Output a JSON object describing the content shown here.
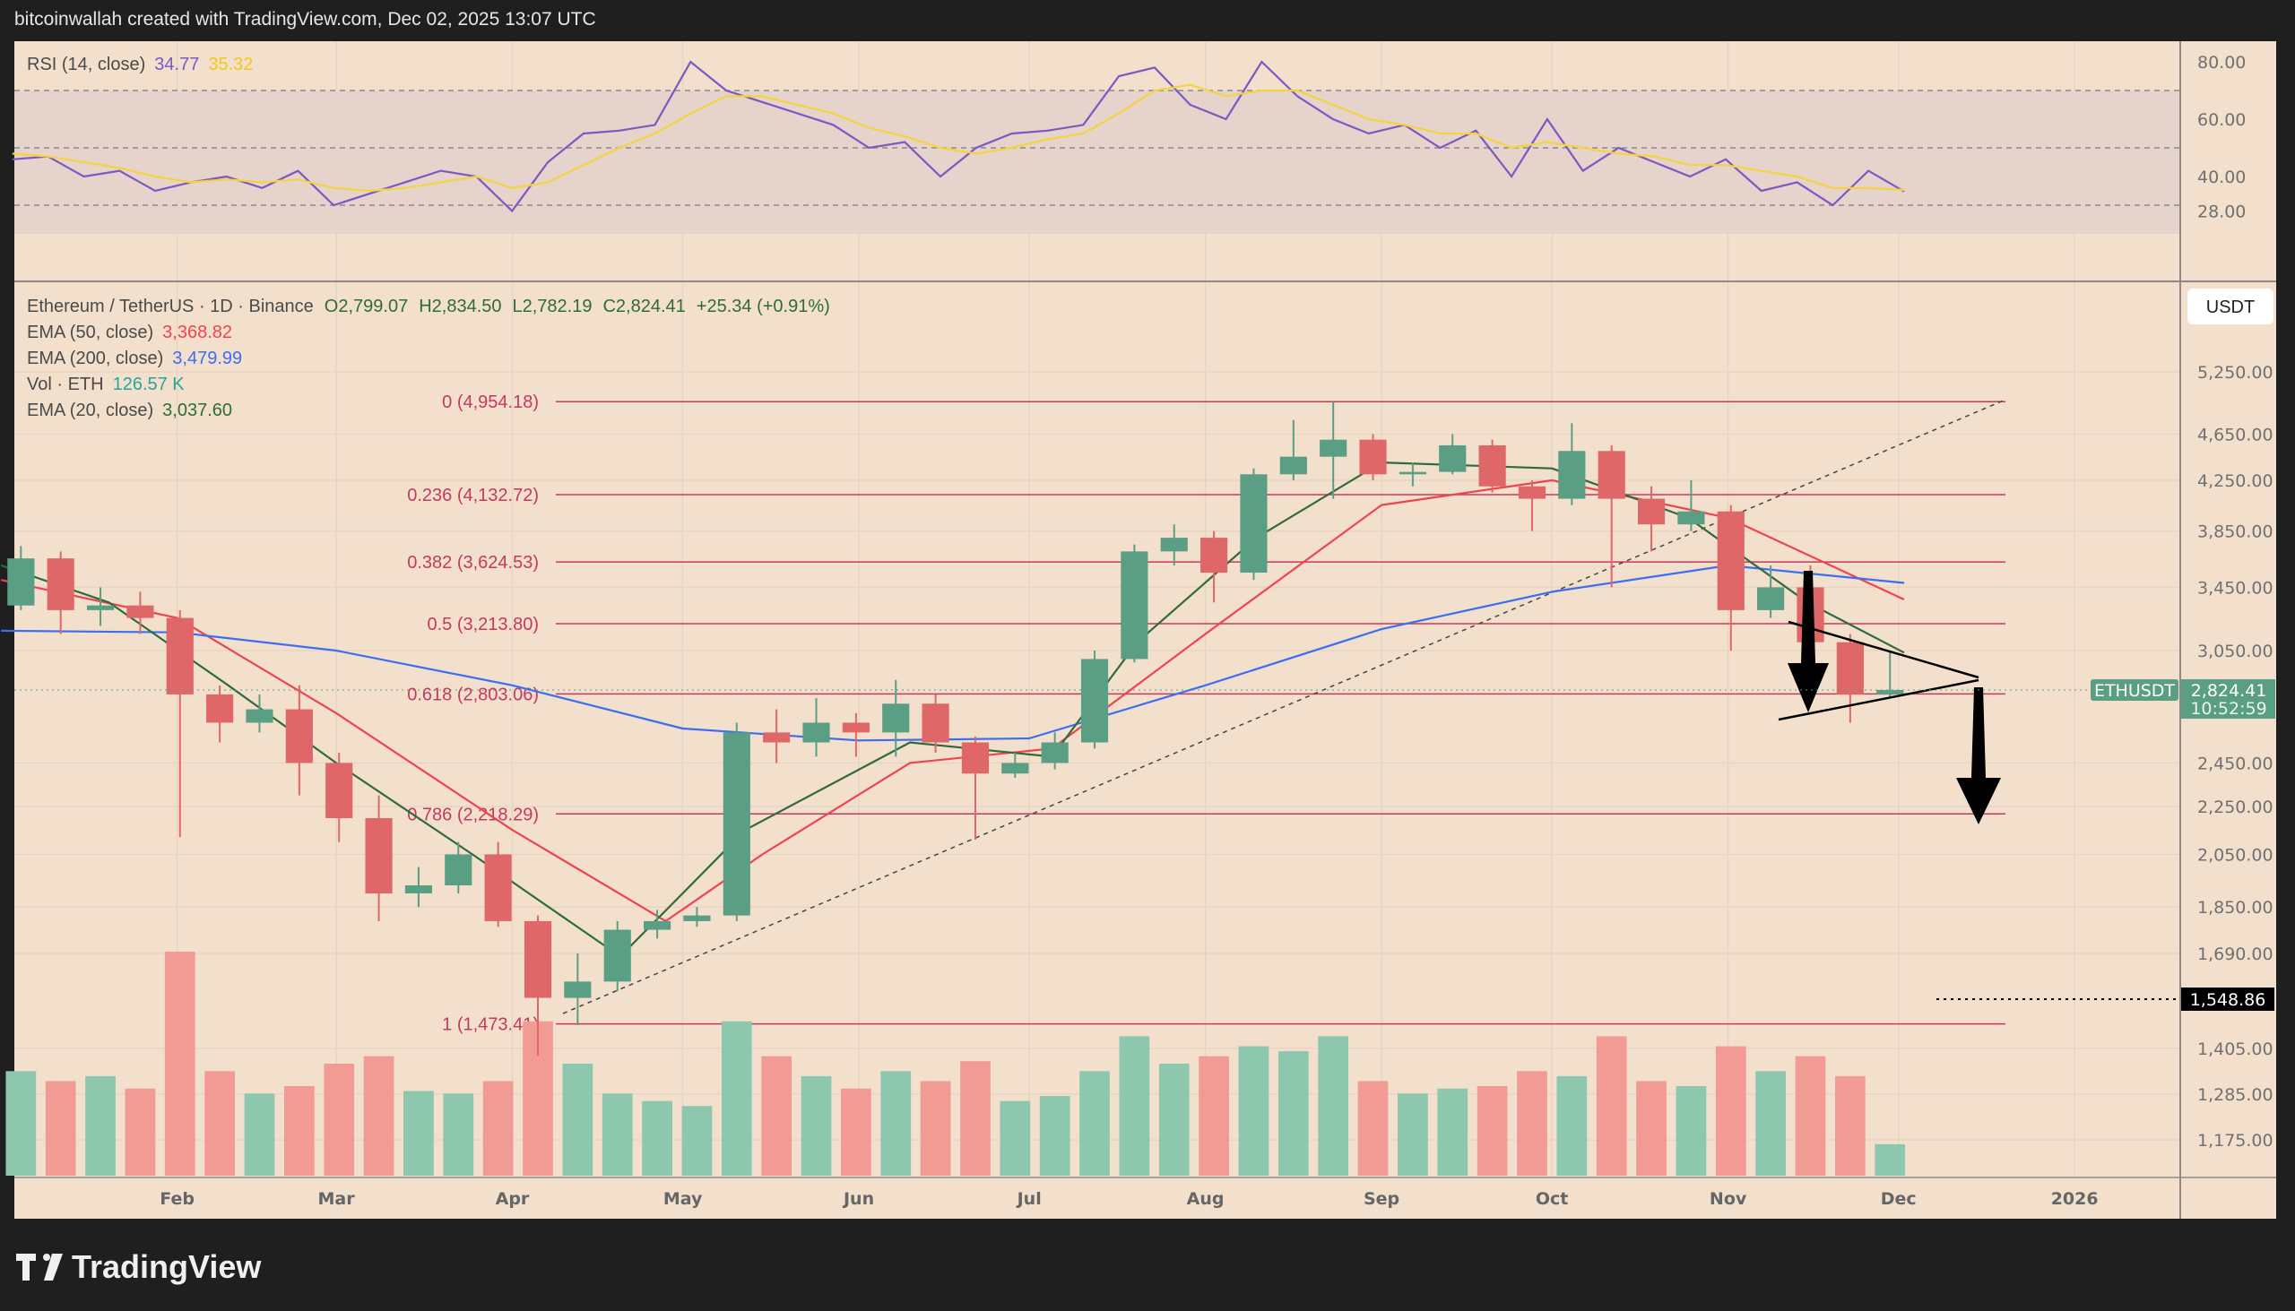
{
  "header": {
    "attribution": "bitcoinwallah created with TradingView.com, Dec 02, 2025 13:07 UTC"
  },
  "footer": {
    "logo_text": "TradingView"
  },
  "rsi_legend": {
    "label": "RSI (14, close)",
    "value": "34.77",
    "signal": "35.32"
  },
  "legend": {
    "symbol": "Ethereum / TetherUS · 1D · Binance",
    "open": "O2,799.07",
    "high": "H2,834.50",
    "low": "L2,782.19",
    "close": "C2,824.41",
    "change": "+25.34 (+0.91%)",
    "ema50_label": "EMA (50, close)",
    "ema50_value": "3,368.82",
    "ema200_label": "EMA (200, close)",
    "ema200_value": "3,479.99",
    "vol_label": "Vol · ETH",
    "vol_value": "126.57 K",
    "ema20_label": "EMA (20, close)",
    "ema20_value": "3,037.60"
  },
  "price_axis": {
    "currency": "USDT",
    "ticks": [
      "5,250.00",
      "4,650.00",
      "4,250.00",
      "3,850.00",
      "3,450.00",
      "3,050.00",
      "2,450.00",
      "2,250.00",
      "2,050.00",
      "1,850.00",
      "1,690.00",
      "1,405.00",
      "1,285.00",
      "1,175.00"
    ],
    "last_symbol": "ETHUSDT",
    "last_price": "2,824.41",
    "countdown": "10:52:59",
    "marker_price": "1,548.86"
  },
  "rsi_axis": {
    "ticks": [
      "80.00",
      "60.00",
      "40.00",
      "28.00"
    ]
  },
  "time_axis": {
    "ticks": [
      "Feb",
      "Mar",
      "Apr",
      "May",
      "Jun",
      "Jul",
      "Aug",
      "Sep",
      "Oct",
      "Nov",
      "Dec",
      "2026"
    ]
  },
  "colors": {
    "background": "#f2e0cd",
    "up": "#5a9e83",
    "down": "#e06767",
    "ema50": "#ef4350",
    "ema200": "#3d6df2",
    "ema20": "#2f6b3a",
    "rsi": "#7e57c2",
    "rsi_signal": "#f5d33f",
    "fib": "#c7385f"
  },
  "chart_data": [
    {
      "type": "candlestick",
      "title": "Ethereum / TetherUS · 1D · Binance",
      "scale": "log",
      "ylim": [
        1100,
        5600
      ],
      "note_resolution": "weekly approximation of daily candles",
      "week_start": [
        "Jan 1",
        "Jan 8",
        "Jan 15",
        "Jan 22",
        "Jan 29",
        "Feb 5",
        "Feb 12",
        "Feb 19",
        "Feb 26",
        "Mar 5",
        "Mar 12",
        "Mar 19",
        "Mar 26",
        "Apr 2",
        "Apr 9",
        "Apr 16",
        "Apr 23",
        "Apr 30",
        "May 7",
        "May 14",
        "May 21",
        "May 28",
        "Jun 4",
        "Jun 11",
        "Jun 18",
        "Jun 25",
        "Jul 2",
        "Jul 9",
        "Jul 16",
        "Jul 23",
        "Jul 30",
        "Aug 6",
        "Aug 13",
        "Aug 20",
        "Aug 27",
        "Sep 3",
        "Sep 10",
        "Sep 17",
        "Sep 24",
        "Oct 1",
        "Oct 8",
        "Oct 15",
        "Oct 22",
        "Oct 29",
        "Nov 5",
        "Nov 12",
        "Nov 19",
        "Nov 26"
      ],
      "ohlc": [
        [
          3330,
          3740,
          3300,
          3650
        ],
        [
          3650,
          3700,
          3150,
          3300
        ],
        [
          3300,
          3450,
          3200,
          3330
        ],
        [
          3330,
          3420,
          3150,
          3250
        ],
        [
          3250,
          3300,
          2120,
          2800
        ],
        [
          2800,
          2850,
          2550,
          2650
        ],
        [
          2650,
          2800,
          2600,
          2720
        ],
        [
          2720,
          2850,
          2300,
          2450
        ],
        [
          2450,
          2500,
          2100,
          2200
        ],
        [
          2200,
          2300,
          1800,
          1900
        ],
        [
          1900,
          2000,
          1850,
          1930
        ],
        [
          1930,
          2100,
          1900,
          2050
        ],
        [
          2050,
          2100,
          1780,
          1800
        ],
        [
          1800,
          1820,
          1385,
          1550
        ],
        [
          1550,
          1690,
          1470,
          1600
        ],
        [
          1600,
          1800,
          1570,
          1770
        ],
        [
          1770,
          1840,
          1740,
          1800
        ],
        [
          1800,
          1850,
          1780,
          1820
        ],
        [
          1820,
          2650,
          1800,
          2600
        ],
        [
          2600,
          2720,
          2450,
          2550
        ],
        [
          2550,
          2780,
          2480,
          2650
        ],
        [
          2650,
          2700,
          2480,
          2600
        ],
        [
          2600,
          2880,
          2480,
          2750
        ],
        [
          2750,
          2800,
          2500,
          2550
        ],
        [
          2550,
          2580,
          2110,
          2400
        ],
        [
          2400,
          2500,
          2380,
          2450
        ],
        [
          2450,
          2600,
          2420,
          2550
        ],
        [
          2550,
          3050,
          2520,
          3000
        ],
        [
          3000,
          3750,
          2980,
          3700
        ],
        [
          3700,
          3900,
          3600,
          3800
        ],
        [
          3800,
          3850,
          3350,
          3550
        ],
        [
          3550,
          4350,
          3500,
          4300
        ],
        [
          4300,
          4780,
          4250,
          4450
        ],
        [
          4450,
          4954,
          4100,
          4600
        ],
        [
          4600,
          4650,
          4250,
          4300
        ],
        [
          4300,
          4400,
          4200,
          4320
        ],
        [
          4320,
          4650,
          4300,
          4550
        ],
        [
          4550,
          4600,
          4150,
          4200
        ],
        [
          4200,
          4250,
          3850,
          4100
        ],
        [
          4100,
          4750,
          4050,
          4500
        ],
        [
          4500,
          4550,
          3450,
          4100
        ],
        [
          4100,
          4200,
          3700,
          3900
        ],
        [
          3900,
          4250,
          3850,
          4000
        ],
        [
          4000,
          4050,
          3050,
          3300
        ],
        [
          3300,
          3600,
          3250,
          3450
        ],
        [
          3450,
          3600,
          2900,
          3100
        ],
        [
          3100,
          3150,
          2650,
          2800
        ],
        [
          2800,
          3050,
          2780,
          2824.41
        ]
      ],
      "volume_k": [
        420,
        380,
        400,
        350,
        900,
        420,
        330,
        360,
        450,
        480,
        340,
        330,
        380,
        620,
        450,
        330,
        300,
        280,
        620,
        480,
        400,
        350,
        420,
        380,
        460,
        300,
        320,
        420,
        560,
        450,
        480,
        520,
        500,
        560,
        380,
        330,
        350,
        360,
        420,
        400,
        560,
        380,
        360,
        520,
        420,
        480,
        400,
        126.57
      ],
      "series": [
        {
          "name": "EMA (50, close)",
          "points": [
            [
              "Jan 1",
              3500
            ],
            [
              "Feb 1",
              3250
            ],
            [
              "Mar 1",
              2700
            ],
            [
              "Apr 1",
              2150
            ],
            [
              "Apr 28",
              1800
            ],
            [
              "May 15",
              2050
            ],
            [
              "Jun 10",
              2450
            ],
            [
              "Jul 5",
              2520
            ],
            [
              "Aug 1",
              3150
            ],
            [
              "Sep 1",
              4050
            ],
            [
              "Oct 1",
              4250
            ],
            [
              "Nov 1",
              3950
            ],
            [
              "Dec 2",
              3368.82
            ]
          ]
        },
        {
          "name": "EMA (200, close)",
          "points": [
            [
              "Jan 1",
              3170
            ],
            [
              "Feb 1",
              3160
            ],
            [
              "Mar 1",
              3050
            ],
            [
              "Apr 1",
              2850
            ],
            [
              "May 1",
              2620
            ],
            [
              "Jun 1",
              2560
            ],
            [
              "Jul 1",
              2570
            ],
            [
              "Aug 1",
              2850
            ],
            [
              "Sep 1",
              3180
            ],
            [
              "Oct 1",
              3420
            ],
            [
              "Nov 1",
              3600
            ],
            [
              "Dec 2",
              3479.99
            ]
          ]
        },
        {
          "name": "EMA (20, close)",
          "points": [
            [
              "Jan 1",
              3600
            ],
            [
              "Jan 20",
              3350
            ],
            [
              "Feb 10",
              2850
            ],
            [
              "Mar 1",
              2450
            ],
            [
              "Mar 25",
              2050
            ],
            [
              "Apr 20",
              1680
            ],
            [
              "May 12",
              2150
            ],
            [
              "Jun 10",
              2550
            ],
            [
              "Jul 5",
              2480
            ],
            [
              "Jul 20",
              3100
            ],
            [
              "Aug 10",
              3800
            ],
            [
              "Sep 1",
              4400
            ],
            [
              "Oct 1",
              4350
            ],
            [
              "Oct 25",
              3950
            ],
            [
              "Nov 15",
              3350
            ],
            [
              "Dec 2",
              3037.6
            ]
          ]
        }
      ],
      "fibonacci": [
        {
          "label": "0 (4,954.18)",
          "price": 4954.18
        },
        {
          "label": "0.236 (4,132.72)",
          "price": 4132.72
        },
        {
          "label": "0.382 (3,624.53)",
          "price": 3624.53
        },
        {
          "label": "0.5 (3,213.80)",
          "price": 3213.8
        },
        {
          "label": "0.618 (2,803.06)",
          "price": 2803.06
        },
        {
          "label": "0.786 (2,218.29)",
          "price": 2218.29
        },
        {
          "label": "1 (1,473.41)",
          "price": 1473.41
        }
      ],
      "marker_line": 1548.86
    },
    {
      "type": "line",
      "title": "RSI (14, close)",
      "ylim": [
        20,
        88
      ],
      "bands": [
        30,
        50,
        70
      ],
      "series": [
        {
          "name": "RSI",
          "values": [
            46,
            47,
            40,
            42,
            35,
            38,
            40,
            36,
            42,
            30,
            34,
            38,
            42,
            40,
            28,
            45,
            55,
            56,
            58,
            80,
            70,
            66,
            62,
            58,
            50,
            52,
            40,
            50,
            55,
            56,
            58,
            75,
            78,
            65,
            60,
            80,
            68,
            60,
            55,
            58,
            50,
            56,
            40,
            60,
            42,
            50,
            45,
            40,
            46,
            35,
            38,
            30,
            42,
            34.77
          ]
        },
        {
          "name": "Signal",
          "values": [
            48,
            47,
            45,
            43,
            40,
            38,
            39,
            38,
            39,
            36,
            35,
            36,
            38,
            40,
            36,
            38,
            44,
            50,
            55,
            62,
            68,
            68,
            65,
            62,
            57,
            54,
            50,
            48,
            50,
            53,
            55,
            62,
            70,
            72,
            68,
            70,
            70,
            65,
            60,
            58,
            55,
            55,
            50,
            52,
            50,
            48,
            47,
            44,
            44,
            42,
            40,
            36,
            36,
            35.32
          ]
        }
      ]
    }
  ]
}
